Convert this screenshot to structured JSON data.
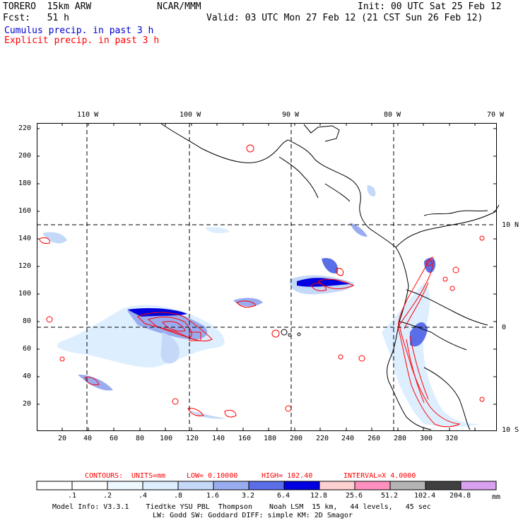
{
  "header": {
    "model": "TORERO  15km ARW",
    "org": "NCAR/MMM",
    "init": "Init: 00 UTC Sat 25 Feb 12",
    "fcst": "Fcst:   51 h",
    "valid": "Valid: 03 UTC Mon 27 Feb 12 (21 CST Sun 26 Feb 12)",
    "cumulus": "Cumulus precip. in past 3 h",
    "explicit": "Explicit precip. in past 3 h"
  },
  "colors": {
    "cumulus": "#0000cc",
    "explicit": "#ff0000",
    "map": "#000000"
  },
  "map": {
    "lon_labels": [
      "110 W",
      "100 W",
      "90 W",
      "80 W",
      "70 W"
    ],
    "lat_labels": [
      "10 N",
      "0",
      "10 S"
    ],
    "x_ticks": [
      "20",
      "40",
      "60",
      "80",
      "100",
      "120",
      "140",
      "160",
      "180",
      "200",
      "220",
      "240",
      "260",
      "280",
      "300",
      "320"
    ],
    "y_ticks": [
      "220",
      "200",
      "180",
      "160",
      "140",
      "120",
      "100",
      "80",
      "60",
      "40",
      "20"
    ]
  },
  "contours": {
    "label": "CONTOURS:",
    "units": "UNITS=mm",
    "low": "LOW= 0.10000",
    "high": "HIGH= 102.40",
    "interval": "INTERVAL=X 4.0000"
  },
  "colorbar": {
    "labels": [
      ".1",
      ".2",
      ".4",
      ".8",
      "1.6",
      "3.2",
      "6.4",
      "12.8",
      "25.6",
      "51.2",
      "102.4",
      "204.8"
    ],
    "unit": "mm",
    "colors": [
      "#ffffff",
      "#ffffff",
      "#eef8ff",
      "#ddeeff",
      "#c4d8f8",
      "#9aacf0",
      "#5a6ee8",
      "#0000e0",
      "#ffd0d0",
      "#ff90c0",
      "#b4b4b4",
      "#404040",
      "#d8a0f0"
    ]
  },
  "footer": {
    "line1": "Model Info: V3.3.1    Tiedtke YSU PBL  Thompson    Noah LSM  15 km,   44 levels,   45 sec",
    "line2": "LW: Godd SW: Goddard DIFF: simple KM: 2D Smagor"
  }
}
